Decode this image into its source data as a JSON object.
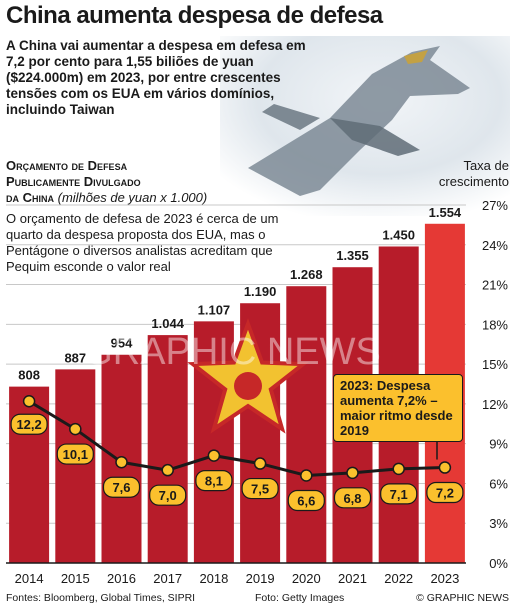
{
  "title": "China aumenta despesa de defesa",
  "intro": "A China vai aumentar a despesa em defesa em 7,2 por cento para 1,55 biliões de yuan ($224.000m) em 2023, por entre crescentes tensões com os EUA em vários domínios, incluindo Taiwan",
  "subtitle": {
    "line1": "Orçamento de Defesa",
    "line2": "Publicamente Divulgado",
    "line3": "da China",
    "units": "(milhões de yuan x 1.000)"
  },
  "note": "O orçamento de defesa de 2023 é cerca de um quarto da despesa proposta dos EUA, mas o Pentágone o diversos analistas acreditam que Pequim esconde o valor real",
  "rate_axis_label": "Taxa de crescimento",
  "callout": "2023: Despesa aumenta 7,2% – maior ritmo desde 2019",
  "watermark": "GRAPHIC NEWS",
  "footer": {
    "sources": "Fontes: Bloomberg, Global Times, SIPRI",
    "photo": "Foto: Getty Images",
    "credit": "© GRAPHIC NEWS"
  },
  "colors": {
    "bar": "#b71c2a",
    "bar_highlight": "#e53935",
    "line": "#1a1a1a",
    "label_fill": "#fbc02d"
  },
  "chart_data": {
    "type": "bar",
    "categories": [
      "2014",
      "2015",
      "2016",
      "2017",
      "2018",
      "2019",
      "2020",
      "2021",
      "2022",
      "2023"
    ],
    "series": [
      {
        "values": [
          808,
          887,
          954,
          1044,
          1107,
          1190,
          1268,
          1355,
          1450,
          1554
        ],
        "labels": [
          "808",
          "887",
          "954",
          "1.044",
          "1.107",
          "1.190",
          "1.268",
          "1.355",
          "1.450",
          "1.554"
        ]
      },
      {
        "type": "line",
        "axis": "right",
        "values": [
          12.2,
          10.1,
          7.6,
          7.0,
          8.1,
          7.5,
          6.6,
          6.8,
          7.1,
          7.2
        ],
        "labels": [
          "12,2",
          "10,1",
          "7,6",
          "7,0",
          "8,1",
          "7,5",
          "6,6",
          "6,8",
          "7,1",
          "7,2"
        ]
      }
    ],
    "bar_ylim": [
      0,
      1640
    ],
    "rate_ylim": [
      0,
      27
    ],
    "rate_ticks": [
      0,
      3,
      6,
      9,
      12,
      15,
      18,
      21,
      24,
      27
    ],
    "rate_tick_labels": [
      "0%",
      "3%",
      "6%",
      "9%",
      "12%",
      "15%",
      "18%",
      "21%",
      "24%",
      "27%"
    ],
    "grid": true,
    "highlight_category": "2023"
  }
}
